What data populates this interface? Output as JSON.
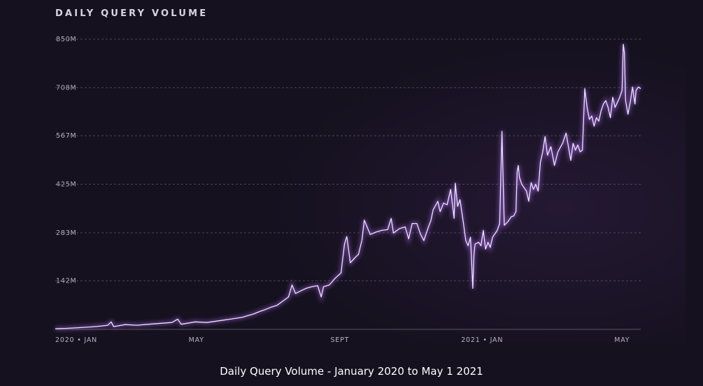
{
  "chart_data": {
    "type": "line",
    "title": "DAILY QUERY VOLUME",
    "caption": "Daily Query Volume - January 2020 to May 1 2021",
    "xlabel": "",
    "ylabel": "",
    "ylim": [
      0,
      850
    ],
    "y_ticks": [
      {
        "value": 142,
        "label": "142M"
      },
      {
        "value": 283,
        "label": "283M"
      },
      {
        "value": 425,
        "label": "425M"
      },
      {
        "value": 567,
        "label": "567M"
      },
      {
        "value": 708,
        "label": "708M"
      },
      {
        "value": 850,
        "label": "850M"
      }
    ],
    "x_ticks": [
      {
        "day": 0,
        "label": "2020 • JAN"
      },
      {
        "day": 121,
        "label": "MAY"
      },
      {
        "day": 244,
        "label": "SEPT"
      },
      {
        "day": 366,
        "label": "2021 • JAN"
      },
      {
        "day": 486,
        "label": "MAY"
      }
    ],
    "x_unit": "days since 2020-01-01",
    "series": [
      {
        "name": "Daily Query Volume (M)",
        "color": "#ece3ff",
        "points": [
          [
            0,
            2
          ],
          [
            10,
            3
          ],
          [
            20,
            5
          ],
          [
            30,
            7
          ],
          [
            40,
            10
          ],
          [
            45,
            12
          ],
          [
            48,
            22
          ],
          [
            50,
            8
          ],
          [
            60,
            14
          ],
          [
            70,
            12
          ],
          [
            80,
            15
          ],
          [
            100,
            20
          ],
          [
            105,
            30
          ],
          [
            108,
            15
          ],
          [
            120,
            22
          ],
          [
            130,
            20
          ],
          [
            140,
            25
          ],
          [
            150,
            30
          ],
          [
            160,
            35
          ],
          [
            170,
            45
          ],
          [
            175,
            52
          ],
          [
            180,
            58
          ],
          [
            185,
            65
          ],
          [
            190,
            70
          ],
          [
            200,
            95
          ],
          [
            203,
            130
          ],
          [
            206,
            105
          ],
          [
            210,
            112
          ],
          [
            215,
            120
          ],
          [
            220,
            125
          ],
          [
            225,
            128
          ],
          [
            228,
            95
          ],
          [
            230,
            125
          ],
          [
            235,
            130
          ],
          [
            240,
            150
          ],
          [
            245,
            165
          ],
          [
            248,
            250
          ],
          [
            250,
            272
          ],
          [
            253,
            195
          ],
          [
            257,
            210
          ],
          [
            260,
            220
          ],
          [
            263,
            262
          ],
          [
            265,
            320
          ],
          [
            268,
            295
          ],
          [
            270,
            278
          ],
          [
            275,
            285
          ],
          [
            280,
            290
          ],
          [
            285,
            292
          ],
          [
            288,
            325
          ],
          [
            290,
            282
          ],
          [
            295,
            295
          ],
          [
            300,
            300
          ],
          [
            303,
            265
          ],
          [
            306,
            310
          ],
          [
            310,
            310
          ],
          [
            313,
            280
          ],
          [
            316,
            260
          ],
          [
            320,
            300
          ],
          [
            322,
            318
          ],
          [
            324,
            350
          ],
          [
            328,
            375
          ],
          [
            330,
            345
          ],
          [
            333,
            370
          ],
          [
            336,
            365
          ],
          [
            339,
            410
          ],
          [
            342,
            325
          ],
          [
            343,
            428
          ],
          [
            345,
            360
          ],
          [
            347,
            380
          ],
          [
            350,
            310
          ],
          [
            352,
            260
          ],
          [
            354,
            245
          ],
          [
            356,
            270
          ],
          [
            358,
            120
          ],
          [
            359,
            220
          ],
          [
            360,
            250
          ],
          [
            363,
            255
          ],
          [
            365,
            245
          ],
          [
            367,
            290
          ],
          [
            369,
            235
          ],
          [
            371,
            255
          ],
          [
            373,
            240
          ],
          [
            375,
            270
          ],
          [
            379,
            290
          ],
          [
            381,
            310
          ],
          [
            383,
            580
          ],
          [
            385,
            305
          ],
          [
            388,
            315
          ],
          [
            391,
            330
          ],
          [
            393,
            332
          ],
          [
            395,
            345
          ],
          [
            396,
            460
          ],
          [
            397,
            480
          ],
          [
            398,
            445
          ],
          [
            400,
            425
          ],
          [
            404,
            405
          ],
          [
            406,
            375
          ],
          [
            408,
            430
          ],
          [
            410,
            410
          ],
          [
            412,
            425
          ],
          [
            414,
            405
          ],
          [
            416,
            490
          ],
          [
            418,
            520
          ],
          [
            420,
            565
          ],
          [
            422,
            510
          ],
          [
            425,
            535
          ],
          [
            428,
            480
          ],
          [
            431,
            520
          ],
          [
            435,
            545
          ],
          [
            438,
            575
          ],
          [
            440,
            535
          ],
          [
            442,
            495
          ],
          [
            444,
            545
          ],
          [
            446,
            525
          ],
          [
            448,
            540
          ],
          [
            450,
            520
          ],
          [
            452,
            525
          ],
          [
            454,
            705
          ],
          [
            456,
            650
          ],
          [
            458,
            615
          ],
          [
            460,
            625
          ],
          [
            462,
            595
          ],
          [
            464,
            620
          ],
          [
            466,
            610
          ],
          [
            468,
            640
          ],
          [
            470,
            660
          ],
          [
            472,
            670
          ],
          [
            474,
            650
          ],
          [
            476,
            620
          ],
          [
            478,
            680
          ],
          [
            480,
            650
          ],
          [
            482,
            665
          ],
          [
            484,
            680
          ],
          [
            486,
            700
          ],
          [
            487,
            835
          ],
          [
            488,
            810
          ],
          [
            489,
            670
          ],
          [
            491,
            630
          ],
          [
            493,
            665
          ],
          [
            495,
            710
          ],
          [
            497,
            660
          ],
          [
            498,
            700
          ],
          [
            500,
            710
          ],
          [
            502,
            705
          ]
        ]
      }
    ]
  }
}
